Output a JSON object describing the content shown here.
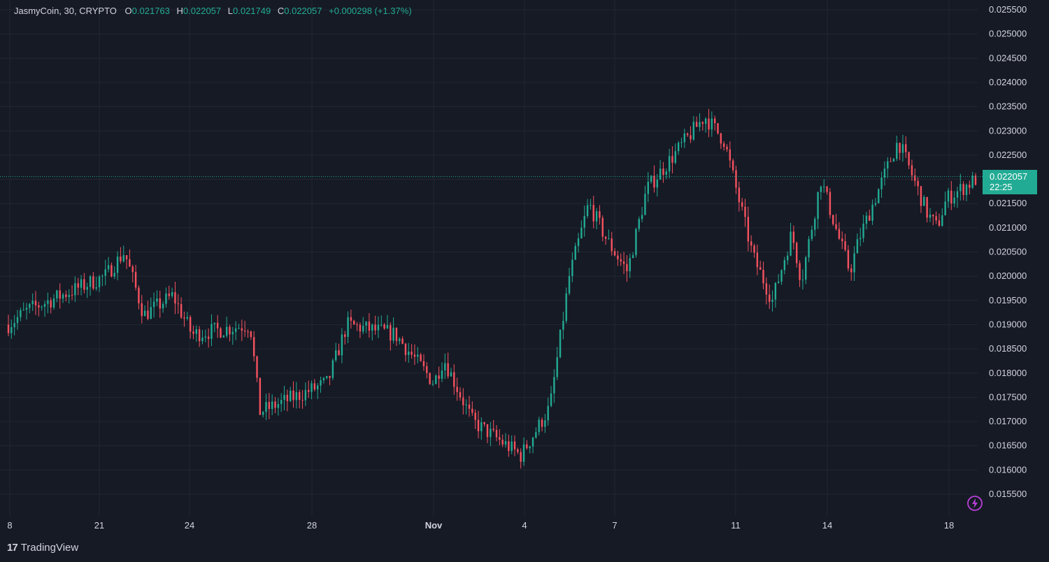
{
  "legend": {
    "symbol": "JasmyCoin, 30, CRYPTO",
    "o_label": "O",
    "o_value": "0.021763",
    "h_label": "H",
    "h_value": "0.022057",
    "l_label": "L",
    "l_value": "0.021749",
    "c_label": "C",
    "c_value": "0.022057",
    "change": "+0.000298 (+1.37%)"
  },
  "last_price": {
    "price": "0.022057",
    "countdown": "22:25"
  },
  "footer": {
    "logo": "17",
    "brand": "TradingView"
  },
  "colors": {
    "background": "#161a25",
    "up": "#22ab94",
    "down": "#f7525f",
    "grid": "#232732",
    "text": "#d1d4dc"
  },
  "chart_data": {
    "type": "candlestick",
    "interval": "30",
    "y_ticks": [
      "0.025500",
      "0.025000",
      "0.024500",
      "0.024000",
      "0.023500",
      "0.023000",
      "0.022500",
      "0.022000",
      "0.021500",
      "0.021000",
      "0.020500",
      "0.020000",
      "0.019500",
      "0.019000",
      "0.018500",
      "0.018000",
      "0.017500",
      "0.017000",
      "0.016500",
      "0.016000",
      "0.015500"
    ],
    "ylim": [
      0.0153,
      0.0257
    ],
    "x_ticks": [
      "8",
      "21",
      "24",
      "28",
      "Nov",
      "4",
      "7",
      "11",
      "14",
      "18"
    ],
    "x_tick_bold": [
      false,
      false,
      false,
      false,
      true,
      false,
      false,
      false,
      false,
      false
    ],
    "path_x": [
      0,
      0.02,
      0.1,
      0.12,
      0.14,
      0.17,
      0.19,
      0.25,
      0.26,
      0.33,
      0.35,
      0.4,
      0.44,
      0.45,
      0.48,
      0.53,
      0.56,
      0.58,
      0.6,
      0.62,
      0.64,
      0.66,
      0.72,
      0.74,
      0.77,
      0.79,
      0.81,
      0.82,
      0.84,
      0.86,
      0.87,
      0.88,
      0.92,
      0.94,
      0.95,
      0.96,
      0.97,
      1.0
    ],
    "path_y": [
      0.019,
      0.0193,
      0.02,
      0.0205,
      0.0192,
      0.0196,
      0.0188,
      0.019,
      0.0172,
      0.0178,
      0.019,
      0.0188,
      0.0178,
      0.0183,
      0.017,
      0.0163,
      0.0173,
      0.02,
      0.0215,
      0.0207,
      0.0201,
      0.0218,
      0.0233,
      0.0228,
      0.0204,
      0.0195,
      0.0209,
      0.0199,
      0.022,
      0.0207,
      0.0201,
      0.0208,
      0.0228,
      0.0218,
      0.0213,
      0.021,
      0.0216,
      0.022
    ],
    "candle_count": 320,
    "last": 0.022057
  }
}
